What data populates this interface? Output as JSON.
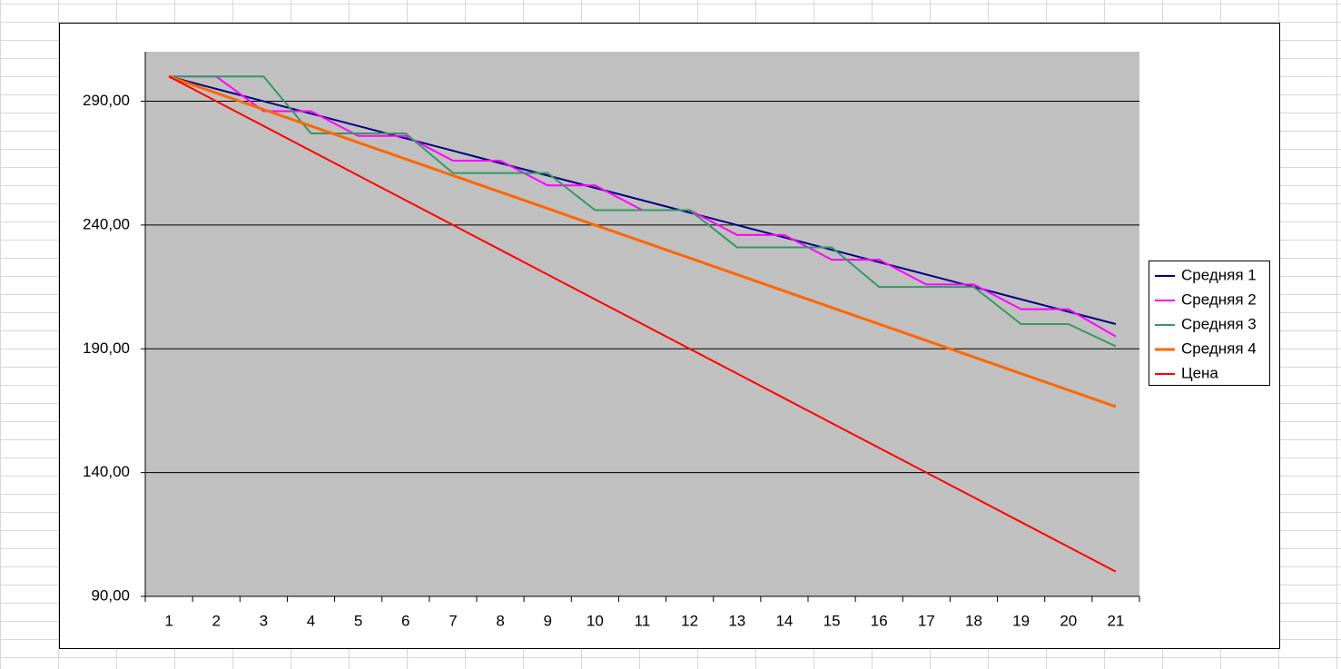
{
  "chart_data": {
    "type": "line",
    "categories": [
      "1",
      "2",
      "3",
      "4",
      "5",
      "6",
      "7",
      "8",
      "9",
      "10",
      "11",
      "12",
      "13",
      "14",
      "15",
      "16",
      "17",
      "18",
      "19",
      "20",
      "21"
    ],
    "series": [
      {
        "name": "Средняя 1",
        "color": "#000080",
        "values": [
          300,
          295,
          290,
          285,
          280,
          275,
          270,
          265,
          260,
          255,
          250,
          245,
          240,
          235,
          230,
          225,
          220,
          215,
          210,
          205,
          200
        ]
      },
      {
        "name": "Средняя 2",
        "color": "#ff00ff",
        "values": [
          300,
          300,
          286,
          286,
          276,
          276,
          266,
          266,
          256,
          256,
          246,
          246,
          236,
          236,
          226,
          226,
          216,
          216,
          206,
          206,
          195
        ]
      },
      {
        "name": "Средняя 3",
        "color": "#339966",
        "values": [
          300,
          300,
          300,
          277,
          277,
          277,
          261,
          261,
          261,
          246,
          246,
          246,
          231,
          231,
          231,
          215,
          215,
          215,
          200,
          200,
          191
        ]
      },
      {
        "name": "Средняя 4",
        "color": "#ff6600",
        "values": [
          300,
          293.33,
          286.67,
          280,
          273.33,
          266.67,
          260,
          253.33,
          246.67,
          240,
          233.33,
          226.67,
          220,
          213.33,
          206.67,
          200,
          193.33,
          186.67,
          180,
          173.33,
          166.67
        ]
      },
      {
        "name": "Цена",
        "color": "#ff0000",
        "values": [
          300,
          290,
          280,
          270,
          260,
          250,
          240,
          230,
          220,
          210,
          200,
          190,
          180,
          170,
          160,
          150,
          140,
          130,
          120,
          110,
          100
        ]
      }
    ],
    "ylim": [
      90,
      310
    ],
    "yticks": [
      {
        "value": 90,
        "label": "90,00"
      },
      {
        "value": 140,
        "label": "140,00"
      },
      {
        "value": 190,
        "label": "190,00"
      },
      {
        "value": 240,
        "label": "240,00"
      },
      {
        "value": 290,
        "label": "290,00"
      }
    ],
    "grid": true,
    "legend": "right"
  }
}
